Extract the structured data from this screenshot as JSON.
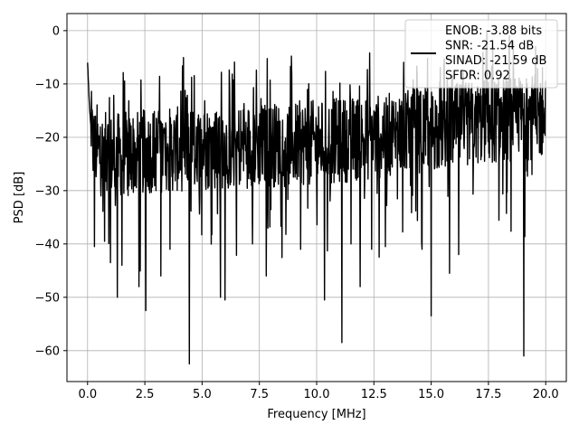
{
  "chart_data": {
    "type": "line",
    "xlabel": "Frequency [MHz]",
    "ylabel": "PSD [dB]",
    "xlim": [
      -0.9,
      20.9
    ],
    "ylim": [
      -65.8,
      3.2
    ],
    "xticks": [
      0.0,
      2.5,
      5.0,
      7.5,
      10.0,
      12.5,
      15.0,
      17.5,
      20.0
    ],
    "xtick_labels": [
      "0.0",
      "2.5",
      "5.0",
      "7.5",
      "10.0",
      "12.5",
      "15.0",
      "17.5",
      "20.0"
    ],
    "yticks": [
      0,
      -10,
      -20,
      -30,
      -40,
      -50,
      -60
    ],
    "ytick_labels": [
      "0",
      "−10",
      "−20",
      "−30",
      "−40",
      "−50",
      "−60"
    ],
    "grid": true,
    "legend_position": "top-right",
    "legend": [
      "ENOB: -3.88 bits",
      "SNR: -21.54 dB",
      "SINAD: -21.59 dB",
      "SFDR: 0.92"
    ],
    "series": [
      {
        "color": "#000000",
        "x_start": 0.0,
        "x_end": 20.0,
        "baseline": [
          [
            0.0,
            -6.0
          ],
          [
            0.08,
            -14.0
          ],
          [
            0.2,
            -21.0
          ],
          [
            0.5,
            -23.0
          ],
          [
            1.0,
            -23.5
          ],
          [
            2.0,
            -23.0
          ],
          [
            3.0,
            -22.5
          ],
          [
            5.0,
            -22.0
          ],
          [
            7.5,
            -21.5
          ],
          [
            10.0,
            -21.0
          ],
          [
            12.5,
            -20.0
          ],
          [
            15.0,
            -18.5
          ],
          [
            17.5,
            -17.0
          ],
          [
            20.0,
            -16.0
          ]
        ],
        "deep_dips": [
          [
            0.3,
            -40.5
          ],
          [
            0.75,
            -39.5
          ],
          [
            1.0,
            -43.5
          ],
          [
            1.3,
            -50.0
          ],
          [
            1.5,
            -44.0
          ],
          [
            2.25,
            -48.0
          ],
          [
            2.55,
            -52.5
          ],
          [
            3.2,
            -46.0
          ],
          [
            3.6,
            -41.0
          ],
          [
            4.45,
            -62.5
          ],
          [
            5.8,
            -50.0
          ],
          [
            6.0,
            -50.5
          ],
          [
            7.2,
            -40.0
          ],
          [
            7.8,
            -46.0
          ],
          [
            9.3,
            -41.0
          ],
          [
            10.35,
            -50.5
          ],
          [
            11.1,
            -58.5
          ],
          [
            11.5,
            -40.0
          ],
          [
            11.9,
            -48.0
          ],
          [
            12.4,
            -41.0
          ],
          [
            13.0,
            -40.5
          ],
          [
            14.6,
            -41.0
          ],
          [
            15.0,
            -53.5
          ],
          [
            15.8,
            -45.5
          ],
          [
            16.2,
            -42.0
          ],
          [
            19.05,
            -61.0
          ]
        ]
      }
    ]
  }
}
